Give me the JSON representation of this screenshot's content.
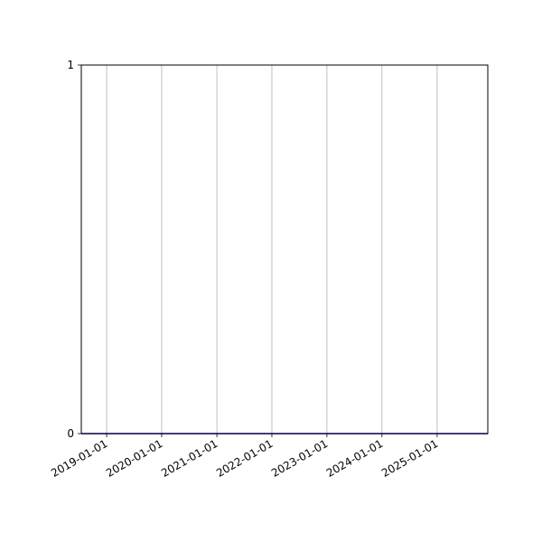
{
  "chart_data": {
    "type": "line",
    "title": "",
    "xlabel": "",
    "ylabel": "",
    "x_scale": "date",
    "xlim": [
      "2018-07-17",
      "2025-12-03"
    ],
    "ylim": [
      0,
      1
    ],
    "x_ticks": [
      "2019-01-01",
      "2020-01-01",
      "2021-01-01",
      "2022-01-01",
      "2023-01-01",
      "2024-01-01",
      "2025-01-01"
    ],
    "y_ticks": [
      0,
      1
    ],
    "y_tick_labels": [
      "0",
      "1"
    ],
    "grid": {
      "x": true,
      "y": false
    },
    "series": [
      {
        "x": [
          "2018-07-17",
          "2025-12-03"
        ],
        "values": [
          0,
          0
        ],
        "color": "#0000cc"
      }
    ],
    "colors": {
      "grid": "#b0b0b0",
      "axes": "#000000"
    }
  }
}
